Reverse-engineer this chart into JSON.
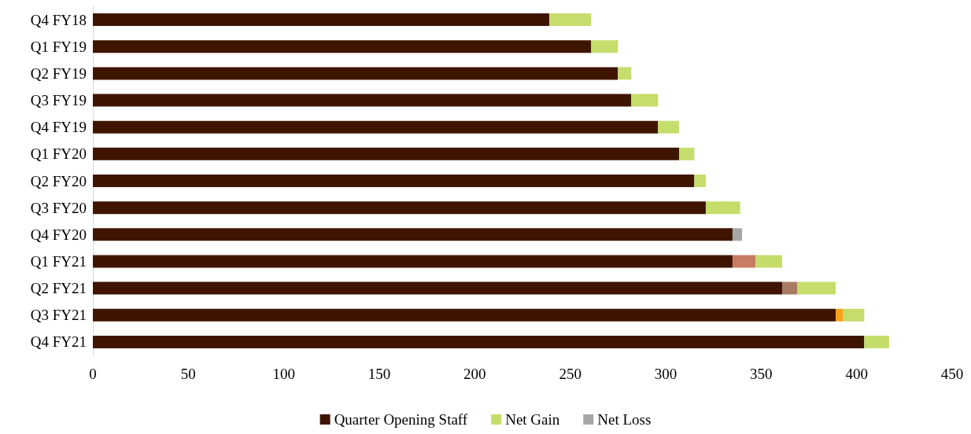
{
  "chart_data": {
    "type": "bar",
    "orientation": "horizontal",
    "stacked": true,
    "categories": [
      "Q4 FY18",
      "Q1 FY19",
      "Q2 FY19",
      "Q3 FY19",
      "Q4 FY19",
      "Q1 FY20",
      "Q2 FY20",
      "Q3 FY20",
      "Q4 FY20",
      "Q1 FY21",
      "Q2 FY21",
      "Q3 FY21",
      "Q4 FY21"
    ],
    "series": [
      {
        "name": "Quarter Opening Staff",
        "color": "#3f1500",
        "values": [
          239,
          261,
          275,
          282,
          296,
          307,
          315,
          321,
          335,
          335,
          361,
          389,
          404
        ]
      },
      {
        "color": "#c97b62",
        "values": [
          null,
          null,
          null,
          null,
          null,
          null,
          null,
          null,
          null,
          12,
          null,
          null,
          null
        ]
      },
      {
        "color": "#f7a21b",
        "values": [
          null,
          null,
          null,
          null,
          null,
          null,
          null,
          null,
          null,
          null,
          null,
          4,
          null
        ]
      },
      {
        "color": "#a87965",
        "values": [
          null,
          null,
          null,
          null,
          null,
          null,
          null,
          null,
          null,
          null,
          8,
          null,
          null
        ]
      },
      {
        "name": "Net Gain",
        "color": "#c5dd6a",
        "values": [
          22,
          14,
          7,
          14,
          11,
          8,
          6,
          18,
          null,
          14,
          20,
          11,
          13
        ]
      },
      {
        "name": "Net Loss",
        "color": "#a6a6a6",
        "values": [
          null,
          null,
          null,
          null,
          null,
          null,
          null,
          null,
          5,
          null,
          null,
          null,
          null
        ]
      }
    ],
    "xlim": [
      0,
      450
    ],
    "xticks": [
      0,
      50,
      100,
      150,
      200,
      250,
      300,
      350,
      400,
      450
    ],
    "grid": false,
    "legend": "bottom"
  }
}
